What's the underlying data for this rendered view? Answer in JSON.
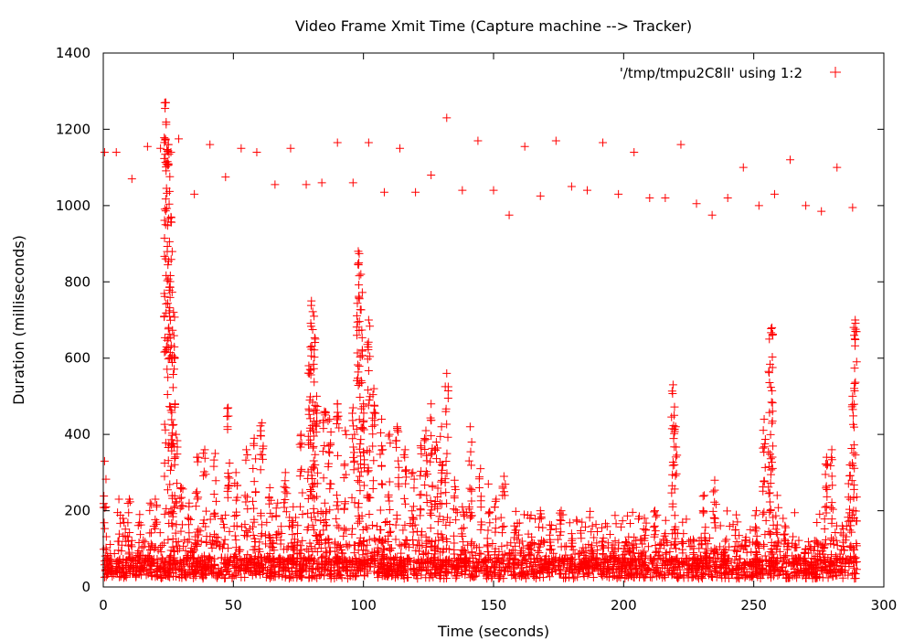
{
  "chart_data": {
    "type": "scatter",
    "title": "Video Frame Xmit Time (Capture machine --> Tracker)",
    "xlabel": "Time (seconds)",
    "ylabel": "Duration (milliseconds)",
    "xlim": [
      0,
      300
    ],
    "ylim": [
      0,
      1400
    ],
    "xticks": [
      "0",
      "50",
      "100",
      "150",
      "200",
      "250",
      "300"
    ],
    "yticks": [
      "0",
      "200",
      "400",
      "600",
      "800",
      "1000",
      "1200",
      "1400"
    ],
    "grid": false,
    "legend_position": "top-right",
    "marker": "+",
    "series": [
      {
        "name": "'/tmp/tmpu2C8lI' using 1:2",
        "color": "#ff0000",
        "spikes": [
          [
            0.5,
            330
          ],
          [
            6,
            230
          ],
          [
            10,
            230
          ],
          [
            14,
            190
          ],
          [
            18,
            220
          ],
          [
            20,
            230
          ],
          [
            24,
            1270
          ],
          [
            25,
            1160
          ],
          [
            26,
            970
          ],
          [
            27,
            720
          ],
          [
            28,
            400
          ],
          [
            30,
            260
          ],
          [
            33,
            220
          ],
          [
            36,
            340
          ],
          [
            39,
            360
          ],
          [
            43,
            350
          ],
          [
            48,
            470
          ],
          [
            51,
            300
          ],
          [
            55,
            360
          ],
          [
            58,
            390
          ],
          [
            61,
            430
          ],
          [
            64,
            260
          ],
          [
            67,
            220
          ],
          [
            70,
            300
          ],
          [
            73,
            210
          ],
          [
            76,
            400
          ],
          [
            79,
            580
          ],
          [
            80,
            750
          ],
          [
            81,
            710
          ],
          [
            82,
            500
          ],
          [
            85,
            460
          ],
          [
            87,
            440
          ],
          [
            90,
            480
          ],
          [
            93,
            410
          ],
          [
            96,
            470
          ],
          [
            98,
            880
          ],
          [
            99,
            820
          ],
          [
            100,
            480
          ],
          [
            102,
            700
          ],
          [
            104,
            520
          ],
          [
            107,
            440
          ],
          [
            110,
            400
          ],
          [
            113,
            420
          ],
          [
            116,
            360
          ],
          [
            119,
            300
          ],
          [
            122,
            370
          ],
          [
            124,
            410
          ],
          [
            126,
            480
          ],
          [
            128,
            380
          ],
          [
            130,
            420
          ],
          [
            132,
            560
          ],
          [
            135,
            280
          ],
          [
            138,
            210
          ],
          [
            141,
            420
          ],
          [
            145,
            310
          ],
          [
            148,
            270
          ],
          [
            151,
            230
          ],
          [
            154,
            290
          ],
          [
            158,
            160
          ],
          [
            161,
            120
          ],
          [
            164,
            110
          ],
          [
            168,
            200
          ],
          [
            172,
            150
          ],
          [
            176,
            200
          ],
          [
            180,
            140
          ],
          [
            184,
            170
          ],
          [
            188,
            160
          ],
          [
            192,
            120
          ],
          [
            196,
            110
          ],
          [
            200,
            100
          ],
          [
            204,
            130
          ],
          [
            208,
            180
          ],
          [
            212,
            200
          ],
          [
            216,
            140
          ],
          [
            219,
            530
          ],
          [
            220,
            420
          ],
          [
            223,
            140
          ],
          [
            227,
            120
          ],
          [
            231,
            240
          ],
          [
            235,
            280
          ],
          [
            239,
            120
          ],
          [
            243,
            150
          ],
          [
            247,
            130
          ],
          [
            251,
            200
          ],
          [
            254,
            440
          ],
          [
            256,
            650
          ],
          [
            257,
            680
          ],
          [
            259,
            240
          ],
          [
            262,
            160
          ],
          [
            266,
            110
          ],
          [
            270,
            100
          ],
          [
            274,
            120
          ],
          [
            278,
            340
          ],
          [
            280,
            360
          ],
          [
            284,
            160
          ],
          [
            287,
            320
          ],
          [
            288,
            500
          ],
          [
            289,
            700
          ]
        ],
        "high_points": [
          [
            0.5,
            1140
          ],
          [
            5,
            1140
          ],
          [
            11,
            1070
          ],
          [
            17,
            1155
          ],
          [
            22,
            1150
          ],
          [
            24,
            1270
          ],
          [
            25,
            1160
          ],
          [
            26,
            1140
          ],
          [
            29,
            1175
          ],
          [
            35,
            1030
          ],
          [
            41,
            1160
          ],
          [
            47,
            1075
          ],
          [
            53,
            1150
          ],
          [
            59,
            1140
          ],
          [
            66,
            1055
          ],
          [
            72,
            1150
          ],
          [
            78,
            1055
          ],
          [
            84,
            1060
          ],
          [
            90,
            1165
          ],
          [
            96,
            1060
          ],
          [
            102,
            1165
          ],
          [
            108,
            1035
          ],
          [
            114,
            1150
          ],
          [
            120,
            1035
          ],
          [
            126,
            1080
          ],
          [
            132,
            1230
          ],
          [
            138,
            1040
          ],
          [
            144,
            1170
          ],
          [
            150,
            1040
          ],
          [
            156,
            975
          ],
          [
            162,
            1155
          ],
          [
            168,
            1025
          ],
          [
            174,
            1170
          ],
          [
            180,
            1050
          ],
          [
            186,
            1040
          ],
          [
            192,
            1165
          ],
          [
            198,
            1030
          ],
          [
            204,
            1140
          ],
          [
            210,
            1020
          ],
          [
            216,
            1020
          ],
          [
            222,
            1160
          ],
          [
            228,
            1005
          ],
          [
            234,
            975
          ],
          [
            240,
            1020
          ],
          [
            246,
            1100
          ],
          [
            252,
            1000
          ],
          [
            258,
            1030
          ],
          [
            264,
            1120
          ],
          [
            270,
            1000
          ],
          [
            276,
            985
          ],
          [
            282,
            1100
          ],
          [
            288,
            995
          ]
        ]
      }
    ]
  }
}
